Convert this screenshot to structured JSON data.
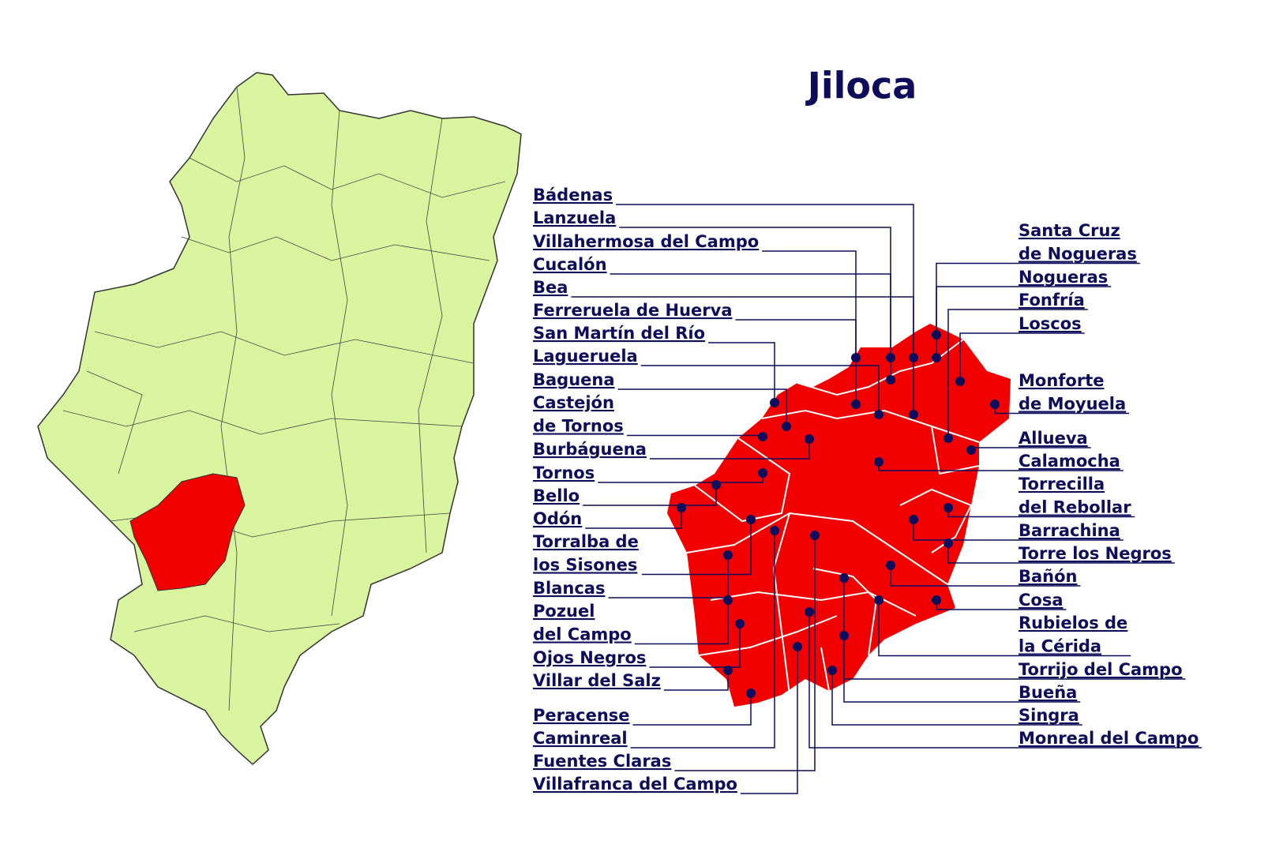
{
  "title": "Jiloca",
  "left_labels": [
    [
      "Bádenas"
    ],
    [
      "Lanzuela"
    ],
    [
      "Villahermosa del Campo"
    ],
    [
      "Cucalón"
    ],
    [
      "Bea"
    ],
    [
      "Ferreruela de Huerva"
    ],
    [
      "San Martín del Río"
    ],
    [
      "Lagueruela"
    ],
    [
      "Baguena"
    ],
    [
      "Castejón",
      "de Tornos"
    ],
    [
      "Burbáguena"
    ],
    [
      "Tornos"
    ],
    [
      "Bello"
    ],
    [
      "Odón"
    ],
    [
      "Torralba de",
      "los Sisones"
    ],
    [
      "Blancas"
    ],
    [
      "Pozuel",
      "del Campo"
    ],
    [
      "Ojos Negros"
    ],
    [
      "Villar del Salz"
    ],
    [
      "Peracense"
    ],
    [
      "Caminreal"
    ],
    [
      "Fuentes Claras"
    ],
    [
      "Villafranca del Campo"
    ]
  ],
  "right_labels": [
    [
      "Santa Cruz",
      "de Nogueras"
    ],
    [
      "Nogueras"
    ],
    [
      "Fonfría"
    ],
    [
      "Loscos"
    ],
    [
      "Monforte",
      "de Moyuela"
    ],
    [
      "Allueva"
    ],
    [
      "Calamocha"
    ],
    [
      "Torrecilla",
      "del Rebollar"
    ],
    [
      "Barrachina"
    ],
    [
      "Torre los Negros"
    ],
    [
      "Bañón"
    ],
    [
      "Cosa"
    ],
    [
      "Rubielos de",
      "la Cérida"
    ],
    [
      "Torrijo del Campo"
    ],
    [
      "Bueña"
    ],
    [
      "Singra"
    ],
    [
      "Monreal del Campo"
    ]
  ]
}
